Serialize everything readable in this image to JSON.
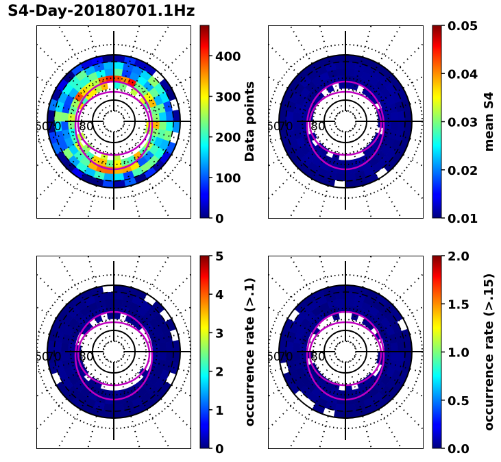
{
  "figure": {
    "title": "S4-Day-20180701.1Hz"
  },
  "chart_data": [
    {
      "type": "heatmap",
      "projection": "polar",
      "title": "",
      "colormap": "jet",
      "colorbar": {
        "label": "Data points",
        "range": [
          0,
          475
        ],
        "ticks": [
          0,
          100,
          200,
          300,
          400
        ],
        "tick_labels": [
          "0",
          "100",
          "200",
          "300",
          "400"
        ]
      },
      "radial_tick_labels": [
        "60",
        "70",
        "80"
      ],
      "ring_data_description": "Annular band of bins between ~60° and ~80° latitude; most bins 50–250 data points, peaks ~300–400 near the inner/middle band",
      "band_levels": {
        "outer_edge": 0.1,
        "mid_band": 0.35,
        "inner_band": 0.55
      }
    },
    {
      "type": "heatmap",
      "projection": "polar",
      "title": "",
      "colormap": "jet",
      "colorbar": {
        "label": "mean S4",
        "range": [
          0.01,
          0.05
        ],
        "ticks": [
          0.01,
          0.02,
          0.03,
          0.04,
          0.05
        ],
        "tick_labels": [
          "0.01",
          "0.02",
          "0.03",
          "0.04",
          "0.05"
        ]
      },
      "radial_tick_labels": [
        "60",
        "70",
        "80"
      ],
      "ring_data_description": "Nearly all bins ~0.01 (dark blue)",
      "band_levels": {
        "outer_edge": 0.0,
        "mid_band": 0.02,
        "inner_band": 0.02
      }
    },
    {
      "type": "heatmap",
      "projection": "polar",
      "title": "",
      "colormap": "jet",
      "colorbar": {
        "label": "occurrence rate (>.1)",
        "range": [
          0,
          5
        ],
        "ticks": [
          0,
          1,
          2,
          3,
          4,
          5
        ],
        "tick_labels": [
          "0",
          "1",
          "2",
          "3",
          "4",
          "5"
        ]
      },
      "radial_tick_labels": [
        "60",
        "70",
        "80"
      ],
      "ring_data_description": "Nearly all bins ~0 (dark blue)",
      "band_levels": {
        "outer_edge": 0.0,
        "mid_band": 0.01,
        "inner_band": 0.01
      }
    },
    {
      "type": "heatmap",
      "projection": "polar",
      "title": "",
      "colormap": "jet",
      "colorbar": {
        "label": "occurrence rate (>.15)",
        "range": [
          0.0,
          2.0
        ],
        "ticks": [
          0.0,
          0.5,
          1.0,
          1.5,
          2.0
        ],
        "tick_labels": [
          "0.0",
          "0.5",
          "1.0",
          "1.5",
          "2.0"
        ]
      },
      "radial_tick_labels": [
        "60",
        "70",
        "80"
      ],
      "ring_data_description": "Nearly all bins ~0 (dark blue), a few faint cyan bins",
      "band_levels": {
        "outer_edge": 0.0,
        "mid_band": 0.01,
        "inner_band": 0.01
      }
    }
  ]
}
